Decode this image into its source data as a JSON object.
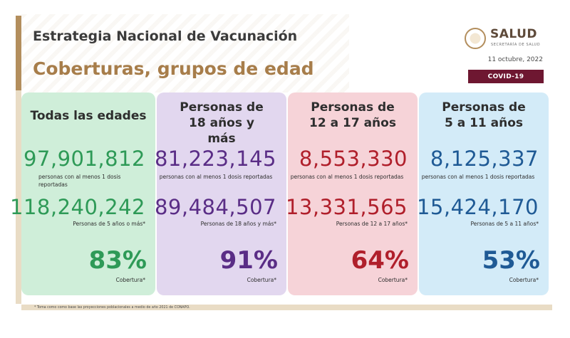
{
  "header": {
    "title": "Estrategia Nacional de Vacunación",
    "subtitle": "Coberturas, grupos de edad",
    "logo_text": "SALUD",
    "logo_subtext": "SECRETARÍA DE SALUD",
    "date": "11 octubre, 2022",
    "badge": "COVID-19"
  },
  "colors": {
    "gold": "#b38e5d",
    "guinda": "#6e1731",
    "green": "#2e9a57",
    "purple": "#5a2d86",
    "red": "#b01f2b",
    "blue": "#1f5a95"
  },
  "cards": [
    {
      "heading": "Todas las edades",
      "vaccinated": "97,901,812",
      "vaccinated_desc": "personas con al menos 1 dosis reportadas",
      "population": "118,240,242",
      "population_desc": "Personas de 5 años o más*",
      "coverage": "83%",
      "coverage_label": "Cobertura*"
    },
    {
      "heading": "Personas de 18 años y más",
      "vaccinated": "81,223,145",
      "vaccinated_desc": "personas con al menos 1 dosis reportadas",
      "population": "89,484,507",
      "population_desc": "Personas de 18 años y más*",
      "coverage": "91%",
      "coverage_label": "Cobertura*"
    },
    {
      "heading": "Personas de 12 a 17 años",
      "vaccinated": "8,553,330",
      "vaccinated_desc": "personas con al menos 1 dosis reportadas",
      "population": "13,331,565",
      "population_desc": "Personas de 12 a 17 años*",
      "coverage": "64%",
      "coverage_label": "Cobertura*"
    },
    {
      "heading": "Personas de 5 a 11 años",
      "vaccinated": "8,125,337",
      "vaccinated_desc": "personas con al menos 1 dosis reportadas",
      "population": "15,424,170",
      "population_desc": "Personas de 5 a 11 años*",
      "coverage": "53%",
      "coverage_label": "Cobertura*"
    }
  ],
  "footnote": "* Toma como como base las proyecciones poblacionales a medio de año 2021 de CONAPO."
}
